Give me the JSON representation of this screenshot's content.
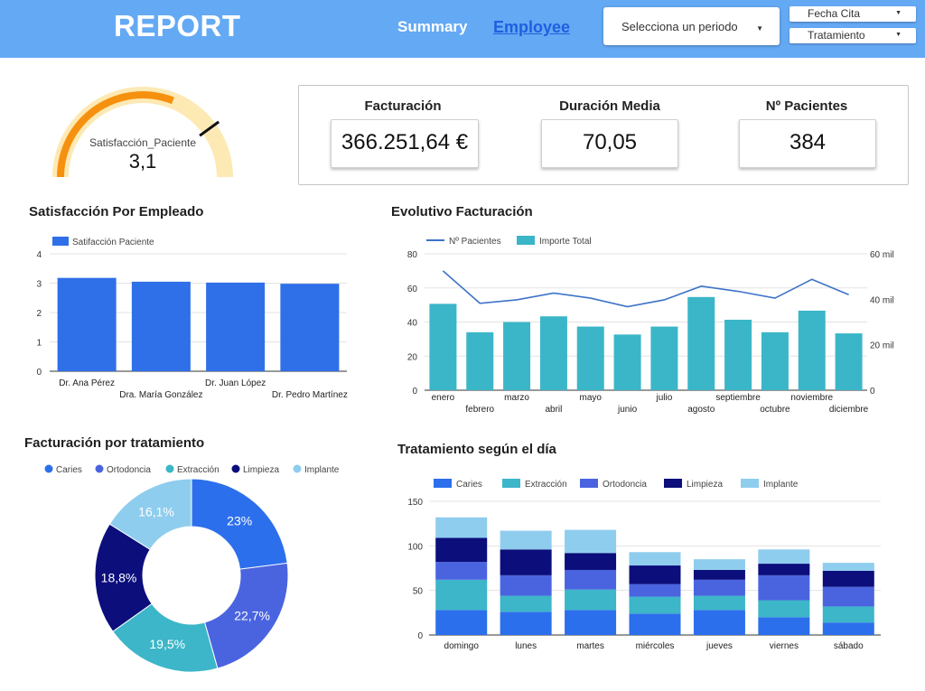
{
  "header": {
    "logo": "REPORT",
    "nav_summary": "Summary",
    "nav_employee": "Employee",
    "period_select": "Selecciona un periodo",
    "filter_fecha": "Fecha Cita",
    "filter_tratamiento": "Tratamiento",
    "caret": "▼"
  },
  "gauge": {
    "label": "Satisfacción_Paciente",
    "value": 3.1,
    "value_text": "3,1",
    "min": 0,
    "max": 5,
    "target": 4,
    "color_track": "#fde9b3",
    "color_fill": "#f5910f"
  },
  "kpis": [
    {
      "title": "Facturación",
      "value": "366.251,64 €"
    },
    {
      "title": "Duración Media",
      "value": "70,05"
    },
    {
      "title": "Nº Pacientes",
      "value": "384"
    }
  ],
  "sections": {
    "satisfaccion": "Satisfacción Por Empleado",
    "evolutivo": "Evolutivo Facturación",
    "tratamiento": "Facturación por tratamiento",
    "dia": "Tratamiento según el día"
  },
  "chart_data": [
    {
      "id": "satisfaccion_empleado",
      "type": "bar",
      "title": "Satisfacción Por Empleado",
      "legend": [
        "Satifacción Paciente"
      ],
      "categories": [
        "Dr. Ana Pérez",
        "Dra. María González",
        "Dr. Juan López",
        "Dr. Pedro Martínez"
      ],
      "values": [
        3.18,
        3.05,
        3.02,
        2.98
      ],
      "ylim": [
        0,
        4
      ],
      "yticks": [
        "0",
        "1",
        "2",
        "3",
        "4"
      ],
      "color": "#2f6fe8"
    },
    {
      "id": "evolutivo_facturacion",
      "type": "bar",
      "title": "Evolutivo Facturación",
      "legend": [
        "Nº Pacientes",
        "Importe Total"
      ],
      "categories": [
        "enero",
        "febrero",
        "marzo",
        "abril",
        "mayo",
        "junio",
        "julio",
        "agosto",
        "septiembre",
        "octubre",
        "noviembre",
        "diciembre"
      ],
      "series": [
        {
          "name": "Importe Total",
          "type": "bar",
          "axis": "right",
          "values": [
            38000,
            25500,
            30000,
            32500,
            28000,
            24500,
            28000,
            41000,
            31000,
            25500,
            35000,
            25000
          ]
        },
        {
          "name": "Nº Pacientes",
          "type": "line",
          "axis": "left",
          "values": [
            70,
            51,
            53,
            57,
            54,
            49,
            53,
            61,
            58,
            54,
            65,
            56
          ]
        }
      ],
      "ylim_left": [
        0,
        80
      ],
      "yticks_left": [
        "0",
        "20",
        "40",
        "60",
        "80"
      ],
      "ylim_right": [
        0,
        60000
      ],
      "yticks_right": [
        "0",
        "20 mil",
        "40 mil",
        "60 mil"
      ],
      "colors": {
        "bar": "#3bb6c8",
        "line": "#3d73c9"
      }
    },
    {
      "id": "facturacion_tratamiento",
      "type": "pie",
      "title": "Facturación por tratamiento",
      "legend": [
        "Caries",
        "Ortodoncia",
        "Extracción",
        "Limpieza",
        "Implante"
      ],
      "slices": [
        {
          "name": "Caries",
          "value": 23.0,
          "label": "23%",
          "color": "#2c6fec"
        },
        {
          "name": "Ortodoncia",
          "value": 22.7,
          "label": "22,7%",
          "color": "#4a64e0"
        },
        {
          "name": "Extracción",
          "value": 19.5,
          "label": "19,5%",
          "color": "#3cb6c8"
        },
        {
          "name": "Limpieza",
          "value": 18.8,
          "label": "18,8%",
          "color": "#0c0e7c"
        },
        {
          "name": "Implante",
          "value": 16.1,
          "label": "16,1%",
          "color": "#8fcdee"
        }
      ]
    },
    {
      "id": "tratamiento_dia",
      "type": "bar",
      "stacked": true,
      "title": "Tratamiento según el día",
      "legend": [
        "Caries",
        "Extracción",
        "Ortodoncia",
        "Limpieza",
        "Implante"
      ],
      "categories": [
        "domingo",
        "lunes",
        "martes",
        "miércoles",
        "jueves",
        "viernes",
        "sábado"
      ],
      "series": [
        {
          "name": "Caries",
          "values": [
            28,
            26,
            28,
            24,
            28,
            20,
            14
          ],
          "color": "#2c6fec"
        },
        {
          "name": "Extracción",
          "values": [
            34,
            18,
            23,
            19,
            16,
            19,
            18
          ],
          "color": "#3cb6c8"
        },
        {
          "name": "Ortodoncia",
          "values": [
            20,
            23,
            22,
            14,
            18,
            28,
            22
          ],
          "color": "#4a64e0"
        },
        {
          "name": "Limpieza",
          "values": [
            27,
            29,
            19,
            21,
            11,
            13,
            18
          ],
          "color": "#0c0e7c"
        },
        {
          "name": "Implante",
          "values": [
            23,
            21,
            26,
            15,
            12,
            16,
            9
          ],
          "color": "#8fcdee"
        }
      ],
      "ylim": [
        0,
        150
      ],
      "yticks": [
        "0",
        "50",
        "100",
        "150"
      ]
    }
  ]
}
